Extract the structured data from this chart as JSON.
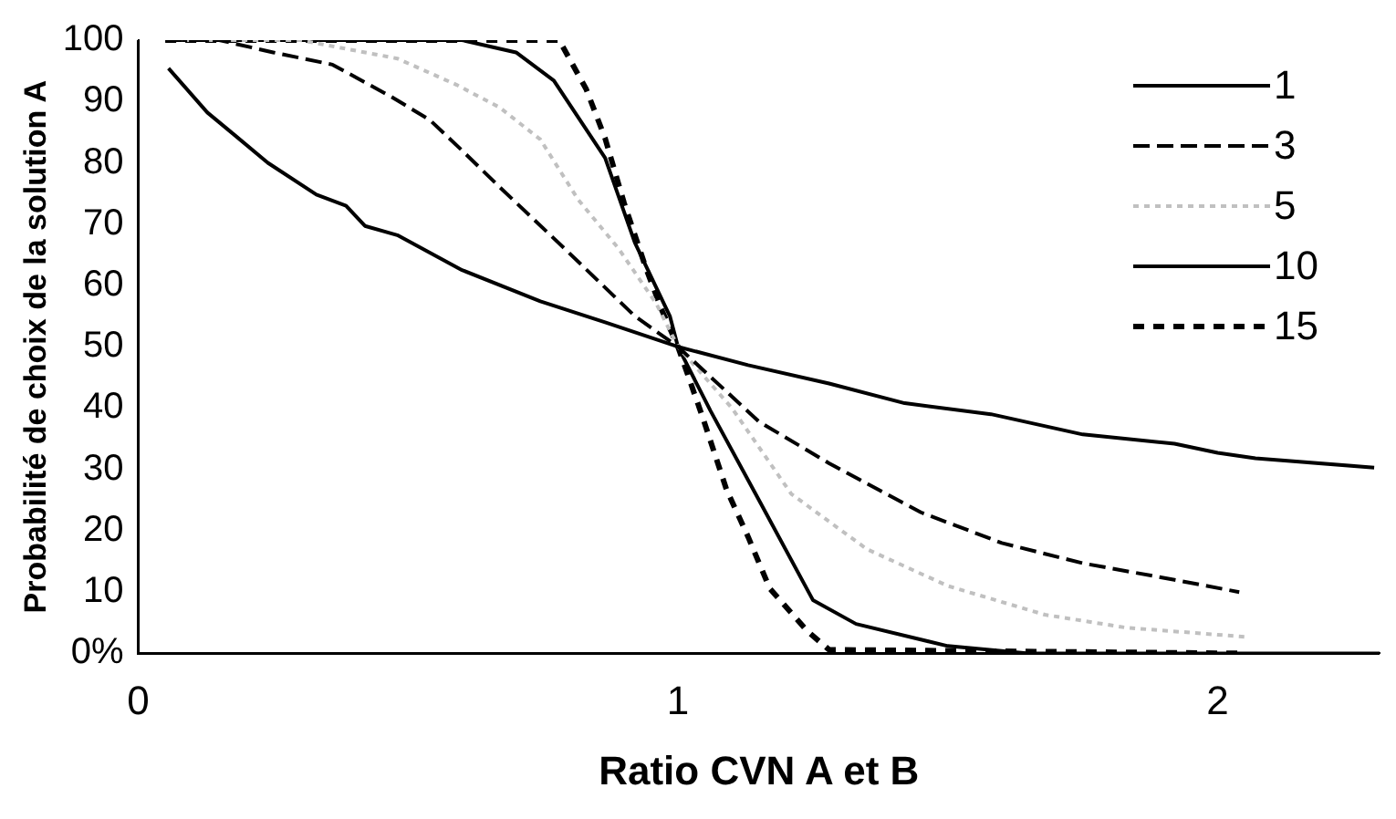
{
  "chart_data": {
    "type": "line",
    "xlabel": "Ratio CVN A et B",
    "ylabel": "Probabilité de choix de la solution A",
    "xlim": [
      0,
      2.3
    ],
    "xticks": [
      0,
      1,
      2
    ],
    "ylim": [
      0,
      100
    ],
    "yticks": [
      {
        "value": 0,
        "label": "0%"
      },
      10,
      20,
      30,
      40,
      50,
      60,
      70,
      80,
      90,
      100
    ],
    "legend": "top right",
    "grid": false,
    "marker": "none",
    "series": [
      {
        "name": "1",
        "color": "#000000",
        "line_style": "solid",
        "x": [
          0.056,
          0.128,
          0.176,
          0.24,
          0.33,
          0.385,
          0.42,
          0.48,
          0.6,
          0.745,
          0.865,
          1.0,
          1.13,
          1.28,
          1.42,
          1.58,
          1.75,
          1.92,
          2.0,
          2.07,
          2.29
        ],
        "values": [
          95.4,
          88.2,
          84.7,
          80,
          74.8,
          73,
          69.7,
          68.2,
          62.5,
          57.4,
          54,
          50,
          47,
          44,
          40.8,
          39,
          35.7,
          34.2,
          32.7,
          31.8,
          30.3
        ]
      },
      {
        "name": "3",
        "color": "#000000",
        "line_style": "dashed",
        "x": [
          0.05,
          0.15,
          0.25,
          0.36,
          0.47,
          0.54,
          0.6,
          0.67,
          0.79,
          0.92,
          1.0,
          1.15,
          1.28,
          1.45,
          1.6,
          1.75,
          1.92,
          2.04
        ],
        "values": [
          100,
          100,
          98,
          96,
          90.7,
          87,
          82,
          76,
          66,
          55,
          50,
          37.8,
          31,
          23,
          18,
          14.7,
          12,
          10
        ]
      },
      {
        "name": "5",
        "color": "#c0c0c0",
        "line_style": "dotted",
        "x": [
          0.05,
          0.3,
          0.48,
          0.59,
          0.67,
          0.745,
          0.815,
          0.89,
          0.96,
          1.0,
          1.1,
          1.21,
          1.35,
          1.5,
          1.68,
          1.83,
          2.05
        ],
        "values": [
          100,
          100,
          97,
          92.7,
          89,
          83.8,
          74,
          66,
          57,
          50,
          40,
          26,
          17,
          11,
          6.3,
          4.2,
          2.7
        ]
      },
      {
        "name": "10",
        "color": "#000000",
        "line_style": "solid",
        "x": [
          0.05,
          0.6,
          0.7,
          0.77,
          0.865,
          0.92,
          0.985,
          1.0,
          1.06,
          1.15,
          1.25,
          1.33,
          1.5,
          1.65,
          2.0,
          2.3
        ],
        "values": [
          100,
          100,
          98,
          93.4,
          80.8,
          67,
          55,
          50,
          39.6,
          25,
          8.7,
          4.8,
          1.2,
          0,
          0,
          0
        ]
      },
      {
        "name": "15",
        "color": "#000000",
        "line_style": "dashed",
        "x": [
          0.05,
          0.78,
          0.83,
          0.865,
          0.9,
          0.94,
          0.97,
          1.0,
          1.045,
          1.09,
          1.13,
          1.17,
          1.24,
          1.28,
          2.05
        ],
        "values": [
          100,
          100,
          92,
          84,
          73.5,
          63,
          56,
          50,
          38.7,
          26.7,
          19,
          10.6,
          3.6,
          0.6,
          0
        ]
      }
    ]
  }
}
